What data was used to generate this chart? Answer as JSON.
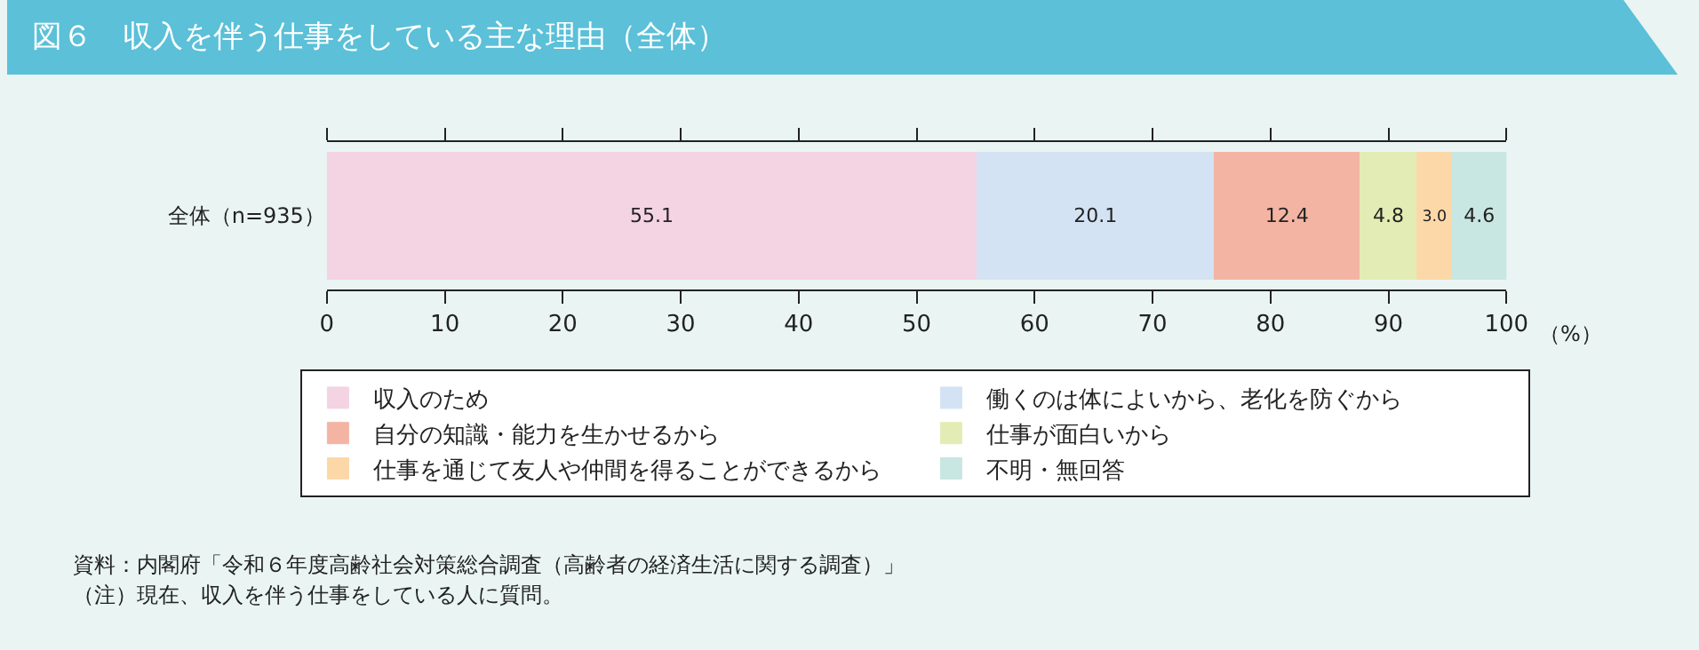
{
  "chart_data": {
    "type": "bar",
    "orientation": "horizontal",
    "stacked": true,
    "title": "図６　収入を伴う仕事をしている主な理由（全体）",
    "xlabel": "（%）",
    "categories": [
      "全体（n=935）"
    ],
    "series": [
      {
        "name": "収入のため",
        "color": "#f4d3e3",
        "values": [
          55.1
        ],
        "value_labels": [
          "55.1"
        ]
      },
      {
        "name": "働くのは体によいから、老化を防ぐから",
        "color": "#d3e3f3",
        "values": [
          20.1
        ],
        "value_labels": [
          "20.1"
        ]
      },
      {
        "name": "自分の知識・能力を生かせるから",
        "color": "#f4b4a3",
        "values": [
          12.4
        ],
        "value_labels": [
          "12.4"
        ]
      },
      {
        "name": "仕事が面白いから",
        "color": "#e3ecb4",
        "values": [
          4.8
        ],
        "value_labels": [
          "4.8"
        ]
      },
      {
        "name": "仕事を通じて友人や仲間を得ることができるから",
        "color": "#fcd8a8",
        "values": [
          3.0
        ],
        "value_labels": [
          "3.0"
        ]
      },
      {
        "name": "不明・無回答",
        "color": "#c8e6e2",
        "values": [
          4.6
        ],
        "value_labels": [
          "4.6"
        ]
      }
    ],
    "xlim": [
      0,
      100
    ],
    "xticks": [
      0,
      10,
      20,
      30,
      40,
      50,
      60,
      70,
      80,
      90,
      100
    ],
    "legend": "bottom",
    "grid": false,
    "annotations": [
      "資料：内閣府「令和６年度高齢社会対策総合調査（高齢者の経済生活に関する調査）」",
      "（注）現在、収入を伴う仕事をしている人に質問。"
    ]
  }
}
